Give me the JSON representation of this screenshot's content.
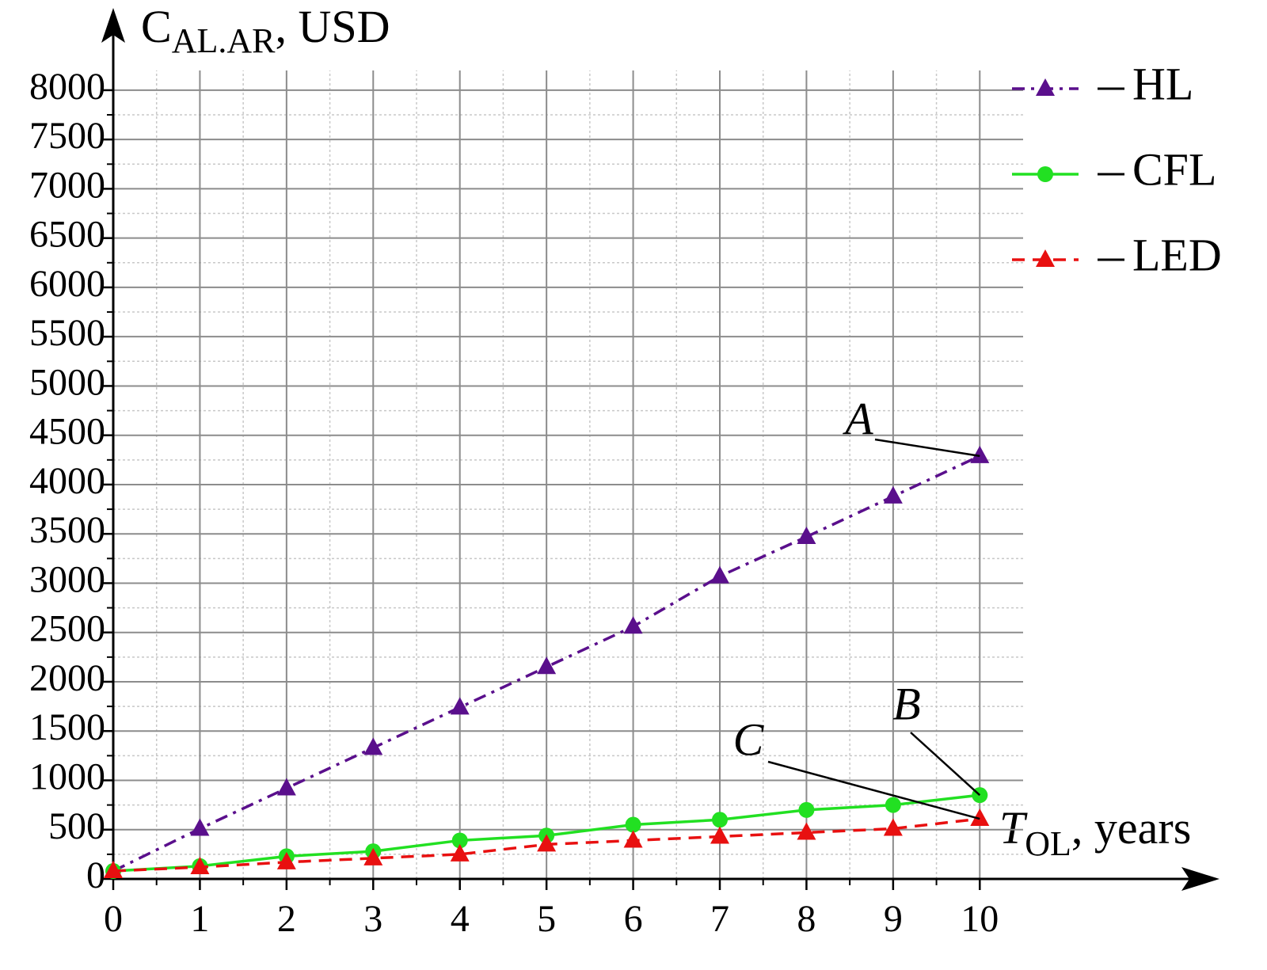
{
  "chart_data": {
    "type": "line",
    "y_label": {
      "main": "C",
      "sub": "AL.AR",
      "rest": ", USD"
    },
    "x_label": {
      "main": "T",
      "sub": "OL",
      "rest": ", years"
    },
    "x": [
      0,
      1,
      2,
      3,
      4,
      5,
      6,
      7,
      8,
      9,
      10
    ],
    "series": [
      {
        "name": "HL",
        "color": "#5a0f8c",
        "dash": "dashdot",
        "marker": "triangle",
        "values": [
          80,
          510,
          920,
          1330,
          1740,
          2150,
          2560,
          3070,
          3470,
          3880,
          4290
        ]
      },
      {
        "name": "CFL",
        "color": "#22e022",
        "dash": "solid",
        "marker": "circle",
        "values": [
          80,
          130,
          230,
          280,
          390,
          440,
          550,
          600,
          700,
          750,
          850
        ]
      },
      {
        "name": "LED",
        "color": "#e81010",
        "dash": "dashed",
        "marker": "triangle",
        "values": [
          80,
          120,
          170,
          210,
          250,
          350,
          390,
          430,
          470,
          510,
          610
        ]
      }
    ],
    "annotations": [
      "A",
      "B",
      "C"
    ],
    "xlim": [
      0,
      10.5
    ],
    "ylim": [
      0,
      8200
    ],
    "xticks": [
      0,
      1,
      2,
      3,
      4,
      5,
      6,
      7,
      8,
      9,
      10
    ],
    "yticks": [
      0,
      500,
      1000,
      1500,
      2000,
      2500,
      3000,
      3500,
      4000,
      4500,
      5000,
      5500,
      6000,
      6500,
      7000,
      7500,
      8000
    ],
    "grid": true,
    "minor_grid": true,
    "legend": "upper right"
  }
}
